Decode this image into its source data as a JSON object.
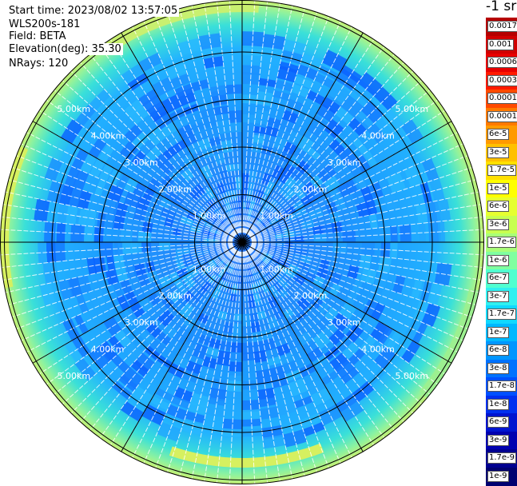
{
  "info": {
    "start_time": "Start time: 2023/08/02 13:57:05",
    "instrument": "WLS200s-181",
    "field": "Field: BETA",
    "elevation": "Elevation(deg): 35.30",
    "nrays": "NRays: 120"
  },
  "colorbar": {
    "unit": "-1 sr",
    "entries": [
      {
        "label": "0.0017",
        "color": "#b50000"
      },
      {
        "label": "0.001",
        "color": "#d00000"
      },
      {
        "label": "0.0006",
        "color": "#e80000"
      },
      {
        "label": "0.0003",
        "color": "#ff1a00"
      },
      {
        "label": "0.00017",
        "color": "#ff4a00"
      },
      {
        "label": "0.0001",
        "color": "#ff7a00"
      },
      {
        "label": "6e-5",
        "color": "#ff9a00"
      },
      {
        "label": "3e-5",
        "color": "#ffc000"
      },
      {
        "label": "1.7e-5",
        "color": "#ffe000"
      },
      {
        "label": "1e-5",
        "color": "#ffff00"
      },
      {
        "label": "6e-6",
        "color": "#e6ff30"
      },
      {
        "label": "3e-6",
        "color": "#c8ff50"
      },
      {
        "label": "1.7e-6",
        "color": "#a8ff78"
      },
      {
        "label": "1e-6",
        "color": "#80ffa0"
      },
      {
        "label": "6e-7",
        "color": "#50ffd0"
      },
      {
        "label": "3e-7",
        "color": "#30f0f0"
      },
      {
        "label": "1.7e-7",
        "color": "#10d8ff"
      },
      {
        "label": "1e-7",
        "color": "#00b8ff"
      },
      {
        "label": "6e-8",
        "color": "#0096ff"
      },
      {
        "label": "3e-8",
        "color": "#0072ff"
      },
      {
        "label": "1.7e-8",
        "color": "#0050ff"
      },
      {
        "label": "1e-8",
        "color": "#0030f0"
      },
      {
        "label": "6e-9",
        "color": "#0014d0"
      },
      {
        "label": "3e-9",
        "color": "#0000b0"
      },
      {
        "label": "1.7e-9",
        "color": "#000090"
      },
      {
        "label": "1e-9",
        "color": "#000070"
      }
    ]
  },
  "range_rings": [
    "1.00km",
    "2.00km",
    "3.00km",
    "4.00km",
    "5.00km"
  ]
}
